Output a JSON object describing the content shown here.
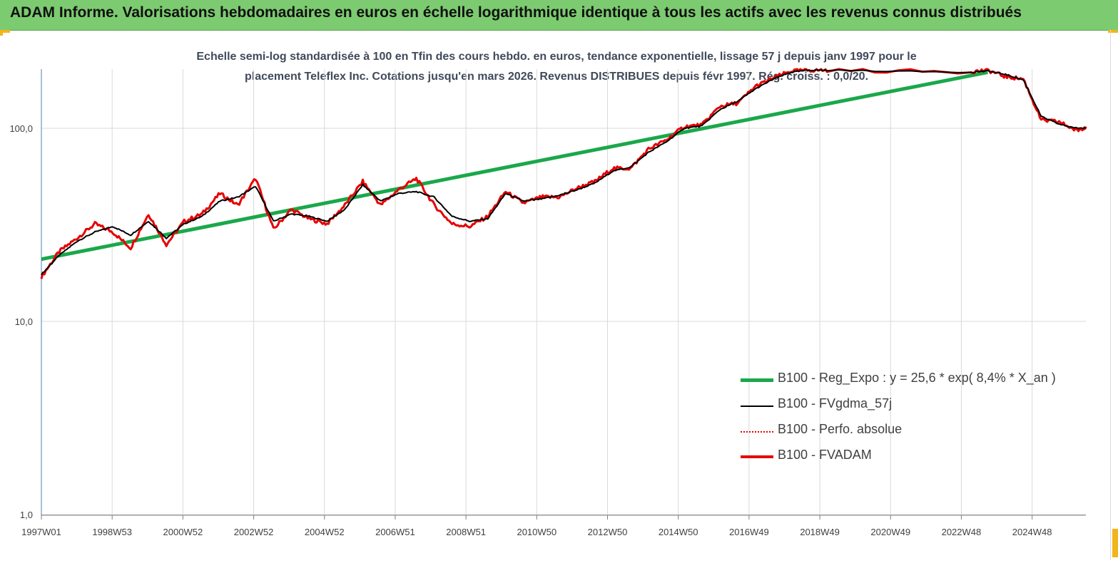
{
  "header": {
    "title": "ADAM Informe. Valorisations hebdomadaires en euros en échelle logarithmique identique à tous les actifs avec les revenus connus distribués"
  },
  "colors": {
    "header_bg": "#7ccb70",
    "accent_corner": "#f2b51a",
    "regression": "#1aa84a",
    "smoothed": "#000000",
    "absolute": "#e60000",
    "fvadam": "#e60000"
  },
  "chart_data": {
    "type": "line",
    "subtitle_line1": "Echelle semi-log standardisée à 100 en Tfin des cours hebdo. en euros, tendance exponentielle, lissage 57 j depuis janv 1997 pour le",
    "subtitle_line2": "placement Teleflex Inc. Cotations jusqu'en mars 2026. Revenus DISTRIBUES depuis févr 1997. Rég. croiss. : 0,0/20.",
    "y_scale": "log",
    "ylim": [
      1,
      200
    ],
    "y_ticks": [
      1,
      10,
      100
    ],
    "y_tick_labels": [
      "1,0",
      "10,0",
      "100,0"
    ],
    "xlim": [
      1997.0,
      2026.25
    ],
    "x_tick_labels": [
      "1997W01",
      "1998W53",
      "2000W52",
      "2002W52",
      "2004W52",
      "2006W51",
      "2008W51",
      "2010W50",
      "2012W50",
      "2014W50",
      "2016W49",
      "2018W49",
      "2020W49",
      "2022W48",
      "2024W48"
    ],
    "grid": "vertical",
    "legend_position": "bottom-right",
    "series": [
      {
        "name": "B100 - Reg_Expo : y = 25,6 * exp( 8,4% *  X_an )",
        "style": "thick-green",
        "x": [
          1997.0,
          2023.5
        ],
        "y": [
          21.0,
          195.0
        ]
      },
      {
        "name": "B100 - FVgdma_57j",
        "style": "thin-black",
        "x": [
          1997.0,
          1997.5,
          1998.0,
          1998.5,
          1999.0,
          1999.5,
          2000.0,
          2000.5,
          2001.0,
          2001.5,
          2002.0,
          2002.5,
          2003.0,
          2003.5,
          2004.0,
          2004.5,
          2005.0,
          2005.5,
          2006.0,
          2006.5,
          2007.0,
          2007.5,
          2008.0,
          2008.5,
          2009.0,
          2009.5,
          2010.0,
          2010.5,
          2011.0,
          2011.5,
          2012.0,
          2012.5,
          2013.0,
          2013.5,
          2014.0,
          2014.5,
          2015.0,
          2015.5,
          2016.0,
          2016.5,
          2017.0,
          2017.5,
          2018.0,
          2018.5,
          2019.0,
          2023.0,
          2023.5,
          2024.0,
          2024.5,
          2025.0,
          2025.5,
          2026.0,
          2026.25
        ],
        "y": [
          17.5,
          22,
          26,
          29,
          31,
          28,
          33,
          27,
          32,
          35,
          42,
          44,
          50,
          33,
          36,
          35,
          33,
          38,
          51,
          42,
          46,
          47,
          44,
          35,
          33,
          34,
          46,
          42,
          43,
          45,
          48,
          52,
          60,
          63,
          75,
          85,
          100,
          103,
          125,
          138,
          160,
          180,
          195,
          200,
          200,
          195,
          198,
          190,
          178,
          115,
          105,
          100,
          101
        ]
      },
      {
        "name": "B100 - Perfo. absolue",
        "style": "dotted-red",
        "x": [
          1997.0,
          1997.5,
          1998.0,
          1998.5,
          1999.0,
          1999.5,
          2000.0,
          2000.5,
          2001.0,
          2001.5,
          2002.0,
          2002.5,
          2003.0,
          2003.5,
          2004.0,
          2004.5,
          2005.0,
          2005.5,
          2006.0,
          2006.5,
          2007.0,
          2007.5,
          2008.0,
          2008.5,
          2009.0,
          2009.5,
          2010.0,
          2010.5,
          2011.0,
          2011.5,
          2012.0,
          2012.5,
          2013.0,
          2013.5,
          2014.0,
          2014.5,
          2015.0,
          2015.5,
          2016.0,
          2016.5,
          2017.0,
          2017.5,
          2018.0,
          2018.5,
          2019.0,
          2023.0,
          2023.5,
          2024.0,
          2024.5,
          2025.0,
          2025.5,
          2026.0,
          2026.25
        ],
        "y": [
          17,
          23,
          27,
          32,
          29,
          24,
          36,
          25,
          33,
          36,
          46,
          40,
          55,
          30,
          38,
          34,
          32,
          40,
          53,
          40,
          48,
          55,
          40,
          32,
          31,
          35,
          47,
          41,
          44,
          44,
          49,
          53,
          62,
          62,
          78,
          87,
          102,
          104,
          130,
          135,
          165,
          182,
          198,
          200,
          200,
          196,
          200,
          185,
          180,
          110,
          108,
          97,
          102
        ]
      },
      {
        "name": "B100 - FVADAM",
        "style": "thick-red",
        "x": [
          1997.0,
          1997.5,
          1998.0,
          1998.5,
          1999.0,
          1999.5,
          2000.0,
          2000.5,
          2001.0,
          2001.5,
          2002.0,
          2002.5,
          2003.0,
          2003.5,
          2004.0,
          2004.5,
          2005.0,
          2005.5,
          2006.0,
          2006.5,
          2007.0,
          2007.5,
          2008.0,
          2008.5,
          2009.0,
          2009.5,
          2010.0,
          2010.5,
          2011.0,
          2011.5,
          2012.0,
          2012.5,
          2013.0,
          2013.5,
          2014.0,
          2014.5,
          2015.0,
          2015.5,
          2016.0,
          2016.5,
          2017.0,
          2017.5,
          2018.0,
          2018.5,
          2019.0,
          2023.0,
          2023.5,
          2024.0,
          2024.5,
          2025.0,
          2025.5,
          2026.0,
          2026.25
        ],
        "y": [
          17,
          23,
          27,
          32,
          29,
          24,
          36,
          25,
          33,
          36,
          46,
          40,
          55,
          30,
          38,
          34,
          32,
          40,
          53,
          40,
          48,
          55,
          40,
          32,
          31,
          35,
          47,
          41,
          44,
          44,
          49,
          53,
          62,
          62,
          78,
          87,
          102,
          104,
          130,
          135,
          165,
          182,
          198,
          200,
          200,
          196,
          200,
          185,
          180,
          110,
          108,
          97,
          102
        ]
      }
    ]
  }
}
